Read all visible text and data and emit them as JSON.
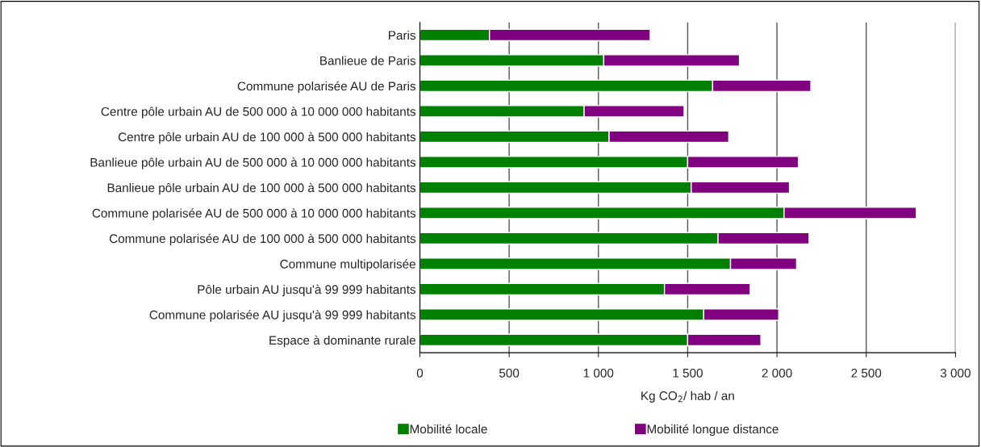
{
  "chart_data": {
    "type": "bar",
    "orientation": "horizontal",
    "stacked": true,
    "categories": [
      "Paris",
      "Banlieue de Paris",
      "Commune polarisée AU de Paris",
      "Centre pôle urbain AU de 500 000 à 10 000 000 habitants",
      "Centre pôle urbain AU de 100 000 à 500 000 habitants",
      "Banlieue pôle urbain AU de 500 000 à 10 000 000 habitants",
      "Banlieue pôle urbain AU de 100 000 à 500 000 habitants",
      "Commune polarisée AU de 500 000 à 10 000 000 habitants",
      "Commune polarisée AU de 100 000 à 500 000 habitants",
      "Commune multipolarisée",
      "Pôle urbain AU jusqu'à 99 999 habitants",
      "Commune polarisée AU jusqu'à 99 999 habitants",
      "Espace à dominante rurale"
    ],
    "series": [
      {
        "name": "Mobilité locale",
        "color": "#008000",
        "values": [
          390,
          1030,
          1640,
          920,
          1060,
          1500,
          1520,
          2040,
          1670,
          1740,
          1370,
          1590,
          1500
        ]
      },
      {
        "name": "Mobilité longue distance",
        "color": "#800080",
        "values": [
          900,
          760,
          550,
          560,
          670,
          620,
          550,
          740,
          510,
          370,
          480,
          420,
          410
        ]
      }
    ],
    "xlabel": "Kg CO$_{2}$/ hab / an",
    "xlim": [
      0,
      3000
    ],
    "xticks": [
      0,
      {
        "value": 500,
        "label": "500"
      },
      {
        "value": 1000,
        "label": "1 000"
      },
      {
        "value": 1500,
        "label": "1 500"
      },
      {
        "value": 2000,
        "label": "2 000"
      },
      {
        "value": 2500,
        "label": "2 500"
      },
      {
        "value": 3000,
        "label": "3 000"
      }
    ],
    "grid": "x",
    "legend": "bottom"
  }
}
